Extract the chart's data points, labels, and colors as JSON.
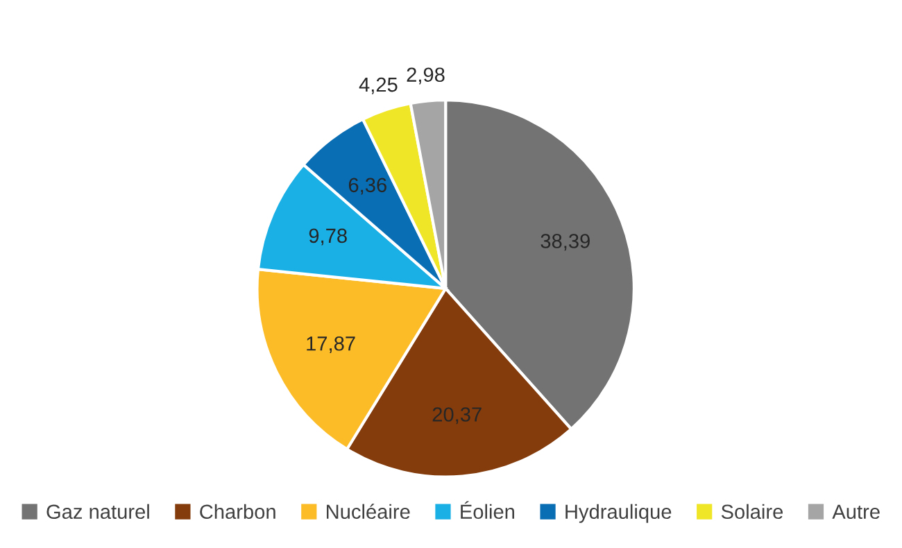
{
  "chart_data": {
    "type": "pie",
    "categories": [
      "Gaz naturel",
      "Charbon",
      "Nucléaire",
      "Éolien",
      "Hydraulique",
      "Solaire",
      "Autre"
    ],
    "values": [
      38.39,
      20.37,
      17.87,
      9.78,
      6.36,
      4.25,
      2.98
    ],
    "value_labels": [
      "38,39",
      "20,37",
      "17,87",
      "9,78",
      "6,36",
      "4,25",
      "2,98"
    ],
    "colors": [
      "#737373",
      "#843c0c",
      "#fbbc28",
      "#1ab0e6",
      "#0a6eb4",
      "#f0e628",
      "#a5a5a5"
    ],
    "legend": "bottom"
  }
}
